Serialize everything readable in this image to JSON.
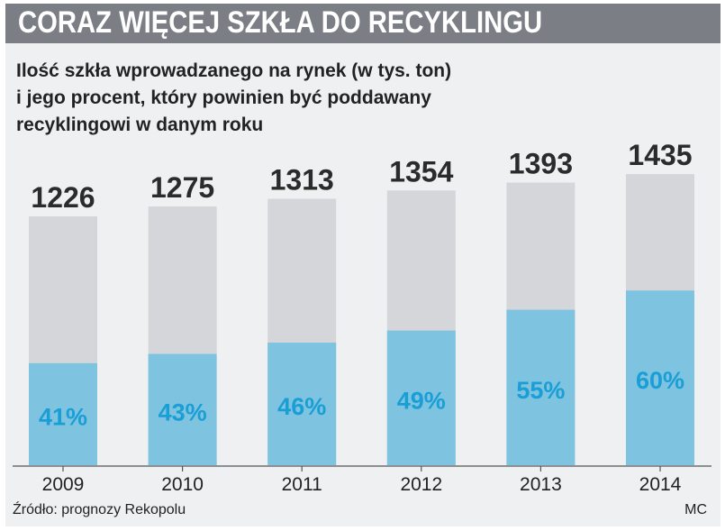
{
  "header": {
    "title": "CORAZ WIĘCEJ SZKŁA DO RECYKLINGU",
    "subtitle_lines": [
      "Ilość szkła wprowadzanego na rynek (w tys. ton)",
      "i jego procent, który powinien być poddawany",
      "recyklingowi w danym roku"
    ]
  },
  "colors": {
    "total_bar": "#d4d6d9",
    "recycled_bar": "#7ec3e0",
    "percent_text": "#1a9ed6",
    "value_text": "#2b2b2b"
  },
  "chart_data": {
    "type": "bar",
    "categories": [
      "2009",
      "2010",
      "2011",
      "2012",
      "2013",
      "2014"
    ],
    "series": [
      {
        "values": [
          1226,
          1275,
          1313,
          1354,
          1393,
          1435
        ]
      },
      {
        "values": [
          41,
          43,
          46,
          49,
          55,
          60
        ],
        "unit": "%"
      }
    ],
    "value_labels": [
      "1226",
      "1275",
      "1313",
      "1354",
      "1393",
      "1435"
    ],
    "percent_labels": [
      "41%",
      "43%",
      "46%",
      "49%",
      "55%",
      "60%"
    ],
    "grid": false,
    "legend": "none"
  },
  "footer": {
    "source": "Źródło: prognozy Rekopolu",
    "author": "MC"
  }
}
